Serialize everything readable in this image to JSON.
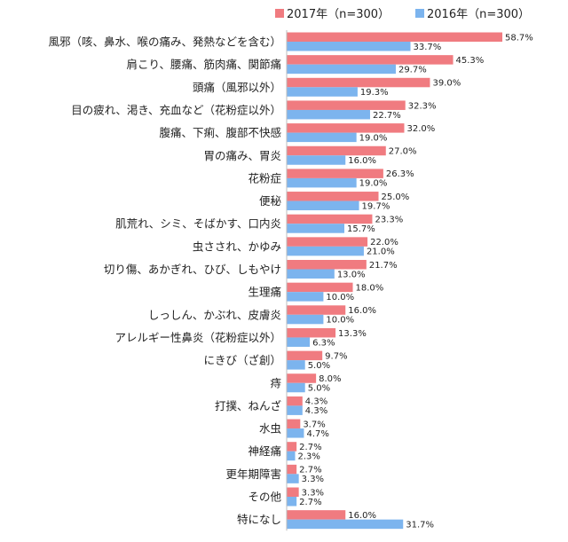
{
  "chart_data": {
    "type": "bar",
    "orientation": "horizontal",
    "title": "",
    "xlabel": "",
    "ylabel": "",
    "xlim": [
      0,
      60
    ],
    "grid": false,
    "legend_position": "top-right",
    "categories": [
      "風邪（咳、鼻水、喉の痛み、発熱などを含む）",
      "肩こり、腰痛、筋肉痛、関節痛",
      "頭痛（風邪以外）",
      "目の疲れ、渇き、充血など（花粉症以外）",
      "腹痛、下痢、腹部不快感",
      "胃の痛み、胃炎",
      "花粉症",
      "便秘",
      "肌荒れ、シミ、そばかす、口内炎",
      "虫さされ、かゆみ",
      "切り傷、あかぎれ、ひび、しもやけ",
      "生理痛",
      "しっしん、かぶれ、皮膚炎",
      "アレルギー性鼻炎（花粉症以外）",
      "にきび（ざ創）",
      "痔",
      "打撲、ねんざ",
      "水虫",
      "神経痛",
      "更年期障害",
      "その他",
      "特になし"
    ],
    "series": [
      {
        "name": "2017年（n=300）",
        "color": "#f07b80",
        "values": [
          58.7,
          45.3,
          39.0,
          32.3,
          32.0,
          27.0,
          26.3,
          25.0,
          23.3,
          22.0,
          21.7,
          18.0,
          16.0,
          13.3,
          9.7,
          8.0,
          4.3,
          3.7,
          2.7,
          2.7,
          3.3,
          16.0
        ],
        "labels": [
          "58.7%",
          "45.3%",
          "39.0%",
          "32.3%",
          "32.0%",
          "27.0%",
          "26.3%",
          "25.0%",
          "23.3%",
          "22.0%",
          "21.7%",
          "18.0%",
          "16.0%",
          "13.3%",
          "9.7%",
          "8.0%",
          "4.3%",
          "3.7%",
          "2.7%",
          "2.7%",
          "3.3%",
          "16.0%"
        ]
      },
      {
        "name": "2016年（n=300）",
        "color": "#7cb4ee",
        "values": [
          33.7,
          29.7,
          19.3,
          22.7,
          19.0,
          16.0,
          19.0,
          19.7,
          15.7,
          21.0,
          13.0,
          10.0,
          10.0,
          6.3,
          5.0,
          5.0,
          4.3,
          4.7,
          2.3,
          3.3,
          2.7,
          31.7
        ],
        "labels": [
          "33.7%",
          "29.7%",
          "19.3%",
          "22.7%",
          "19.0%",
          "16.0%",
          "19.0%",
          "19.7%",
          "15.7%",
          "21.0%",
          "13.0%",
          "10.0%",
          "10.0%",
          "6.3%",
          "5.0%",
          "5.0%",
          "4.3%",
          "4.7%",
          "2.3%",
          "3.3%",
          "2.7%",
          "31.7%"
        ]
      }
    ]
  }
}
